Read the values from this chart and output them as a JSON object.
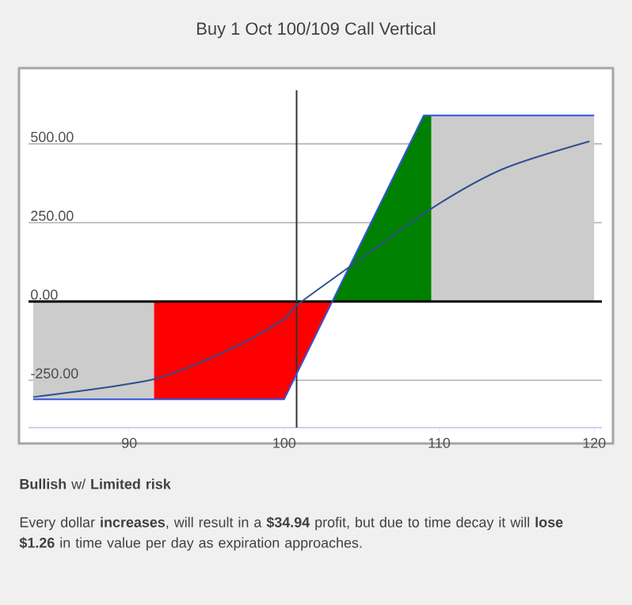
{
  "chart_data": {
    "type": "area",
    "title": "Buy 1 Oct 100/109 Call Vertical",
    "xlim": [
      83.5,
      120.5
    ],
    "ylim": [
      -400,
      670
    ],
    "xticks": [
      90,
      100,
      110,
      120
    ],
    "yticks": [
      {
        "value": -250,
        "label": "-250.00"
      },
      {
        "value": 0,
        "label": "0.00"
      },
      {
        "value": 250,
        "label": "250.00"
      },
      {
        "value": 500,
        "label": "500.00"
      }
    ],
    "grid": "y",
    "marker": "none",
    "series": [
      {
        "color": "#cccccc",
        "x": [
          83.8,
          91.6
        ],
        "values": [
          -310,
          -310
        ]
      },
      {
        "color": "#ff0000",
        "x": [
          91.6,
          100,
          103.1
        ],
        "values": [
          -310,
          -310,
          0
        ]
      },
      {
        "color": "#008000",
        "x": [
          103.1,
          109,
          109.5
        ],
        "values": [
          0,
          590,
          590
        ]
      },
      {
        "color": "#cccccc",
        "x": [
          109.5,
          120
        ],
        "values": [
          590,
          590
        ]
      },
      {
        "type": "line",
        "color": "#3355dd",
        "x": [
          83.8,
          100,
          109,
          120
        ],
        "values": [
          -310,
          -310,
          590,
          590
        ]
      },
      {
        "type": "line",
        "color": "#2f4f8f",
        "x": [
          83.8,
          91.6,
          96.7,
          100,
          100.8,
          104.5,
          109.5,
          114.1,
          119.7
        ],
        "values": [
          -303,
          -246,
          -147,
          -55,
          -12,
          120,
          295,
          420,
          508
        ]
      }
    ],
    "ref_lines": [
      {
        "axis": "y",
        "value": 0,
        "color": "#000000"
      },
      {
        "axis": "x",
        "value": 100.8,
        "color": "#333333"
      }
    ],
    "annotations": [
      "**Bullish** w/ **Limited risk**",
      "Every dollar **increases**, will result in a **$34.94** profit, but due to time decay it will **lose $1.26** in time value per day as expiration approaches."
    ]
  }
}
